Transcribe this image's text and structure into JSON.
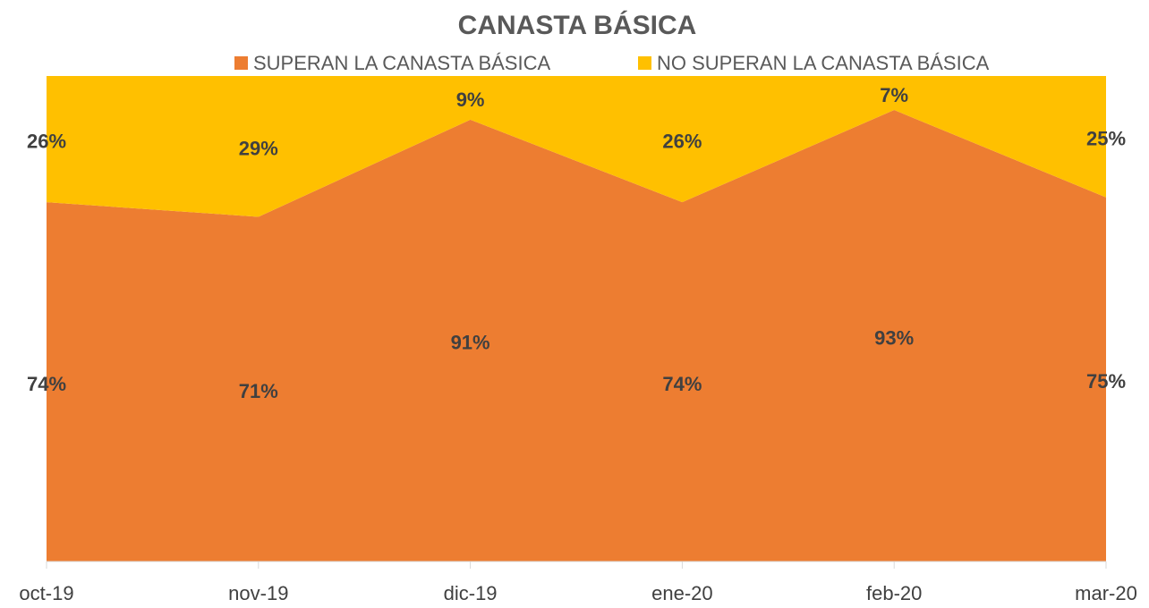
{
  "chart_data": {
    "type": "area",
    "stacked": true,
    "title": "CANASTA BÁSICA",
    "categories": [
      "oct-19",
      "nov-19",
      "dic-19",
      "ene-20",
      "feb-20",
      "mar-20"
    ],
    "series": [
      {
        "name": "SUPERAN LA CANASTA BÁSICA",
        "color": "#ED7D31",
        "values": [
          74,
          71,
          91,
          74,
          93,
          75
        ],
        "value_labels": [
          "74%",
          "71%",
          "91%",
          "74%",
          "93%",
          "75%"
        ]
      },
      {
        "name": "NO SUPERAN LA CANASTA BÁSICA",
        "color": "#FFC000",
        "values": [
          26,
          29,
          9,
          26,
          7,
          25
        ],
        "value_labels": [
          "26%",
          "29%",
          "9%",
          "26%",
          "7%",
          "25%"
        ]
      }
    ],
    "ylim": [
      0,
      100
    ],
    "legend": "top"
  }
}
